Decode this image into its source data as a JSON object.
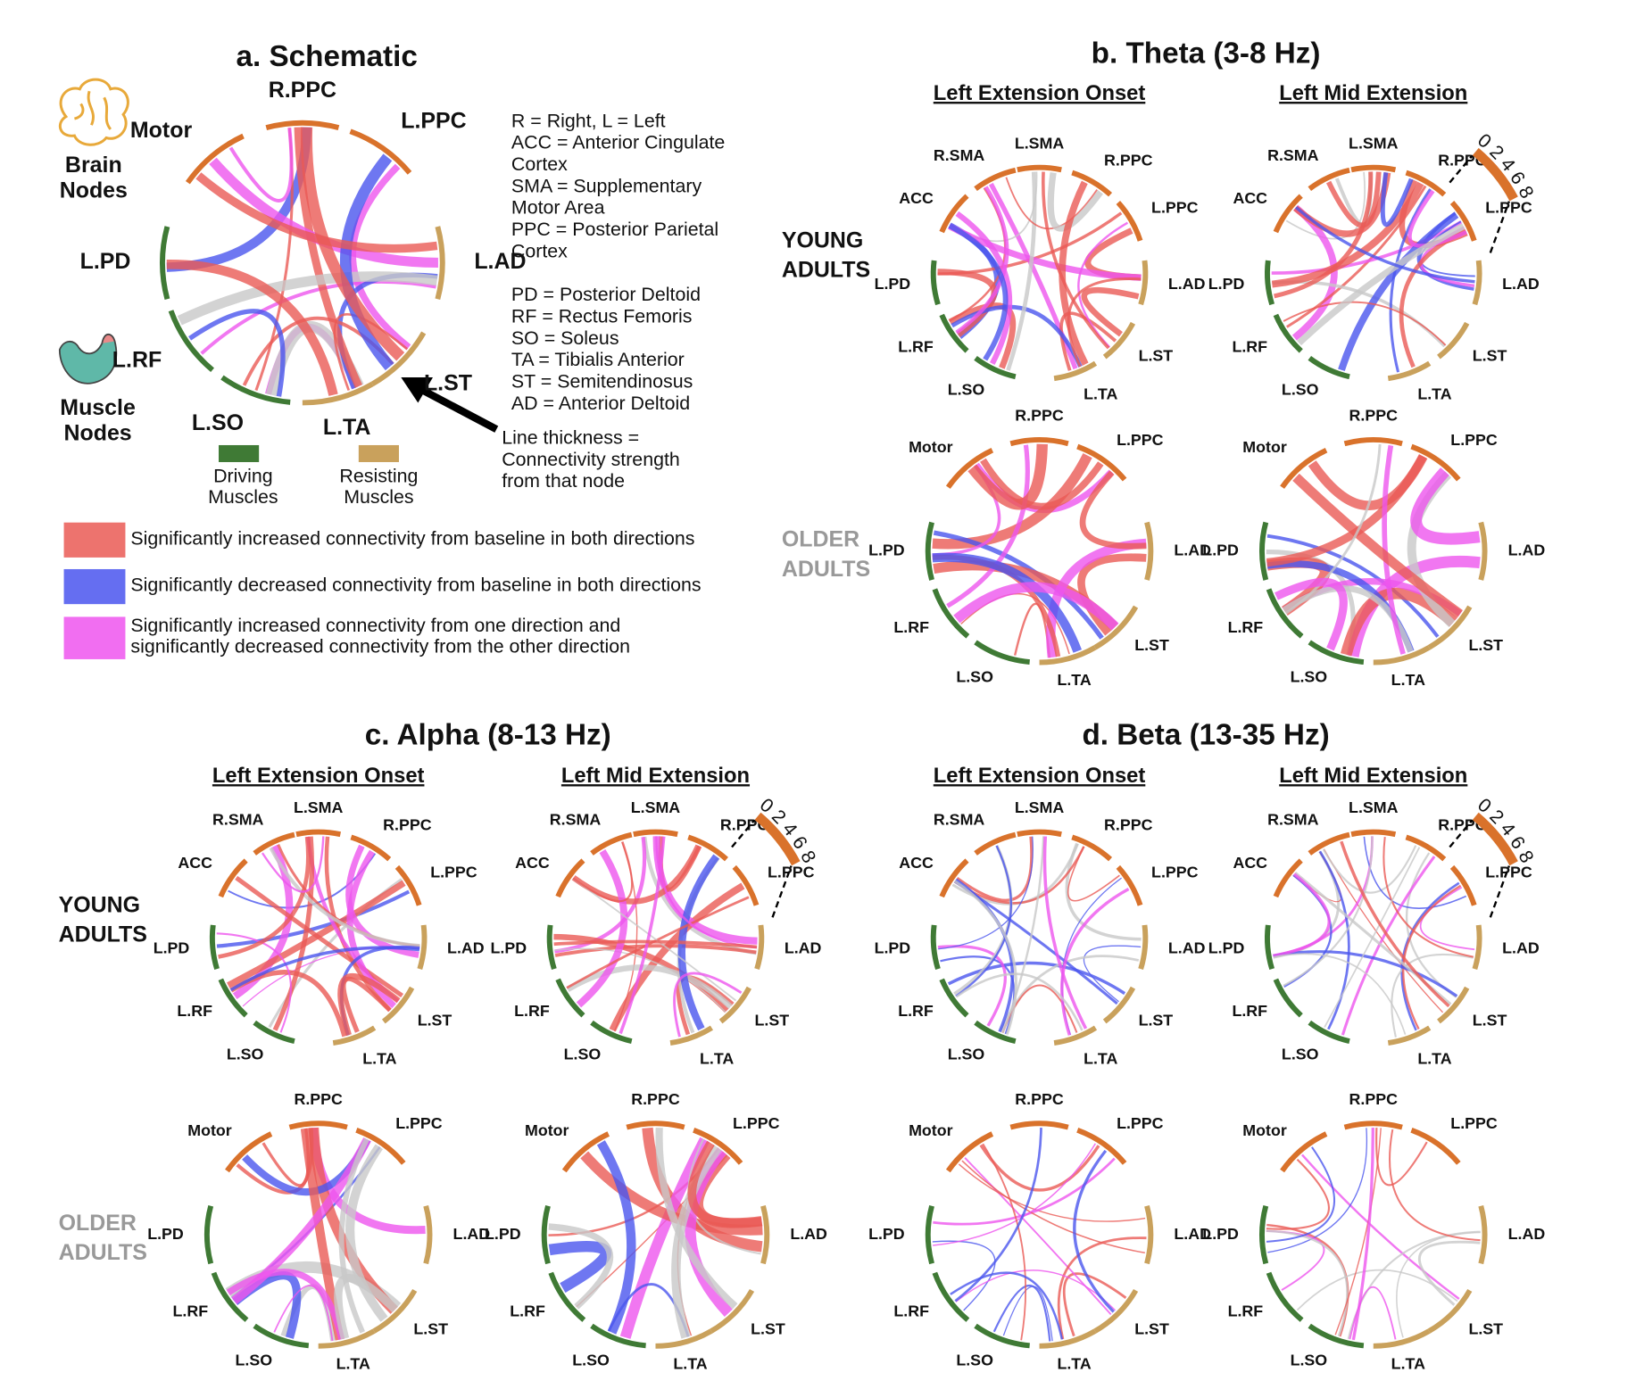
{
  "panel_a": {
    "title": "a. Schematic",
    "brain_nodes": [
      "Brain",
      "Nodes"
    ],
    "muscle_nodes": [
      "Muscle",
      "Nodes"
    ],
    "abbreviations": [
      "R = Right, L = Left",
      "ACC = Anterior Cingulate",
      "Cortex",
      "SMA = Supplementary",
      "Motor Area",
      "PPC = Posterior Parietal",
      "Cortex",
      "PD = Posterior Deltoid",
      "RF = Rectus Femoris",
      "SO = Soleus",
      "TA = Tibialis Anterior",
      "ST = Semitendinosus",
      "AD = Anterior Deltoid"
    ],
    "line_note": [
      "Line thickness =",
      "Connectivity strength",
      "from that node"
    ],
    "driving": [
      "Driving",
      "Muscles"
    ],
    "resisting": [
      "Resisting",
      "Muscles"
    ],
    "color_legend": [
      [
        "Significantly increased connectivity from baseline in both directions"
      ],
      [
        "Significantly decreased connectivity from baseline in both directions"
      ],
      [
        "Significantly increased connectivity from one direction and",
        "significantly decreased connectivity from the other direction"
      ]
    ]
  },
  "young_nodes": [
    "L.SMA",
    "R.PPC",
    "L.PPC",
    "L.AD",
    "L.ST",
    "L.TA",
    "L.SO",
    "L.RF",
    "L.PD",
    "ACC",
    "R.SMA"
  ],
  "older_nodes": [
    "R.PPC",
    "L.PPC",
    "L.AD",
    "L.ST",
    "L.TA",
    "L.SO",
    "L.RF",
    "L.PD",
    "Motor"
  ],
  "rows": [
    [
      "YOUNG",
      "ADULTS"
    ],
    [
      "OLDER",
      "ADULTS"
    ]
  ],
  "panels": [
    {
      "title": "b. Theta (3-8 Hz)",
      "columns": [
        "Left Extension Onset",
        "Left Mid Extension"
      ],
      "scale_ticks": [
        0,
        2,
        4,
        6,
        8
      ]
    },
    {
      "title": "c. Alpha (8-13 Hz)",
      "columns": [
        "Left Extension Onset",
        "Left Mid Extension"
      ],
      "scale_ticks": [
        0,
        2,
        4,
        6,
        8
      ]
    },
    {
      "title": "d. Beta (13-35 Hz)",
      "columns": [
        "Left Extension Onset",
        "Left Mid Extension"
      ],
      "scale_ticks": [
        0,
        2,
        4,
        6,
        8
      ]
    }
  ]
}
